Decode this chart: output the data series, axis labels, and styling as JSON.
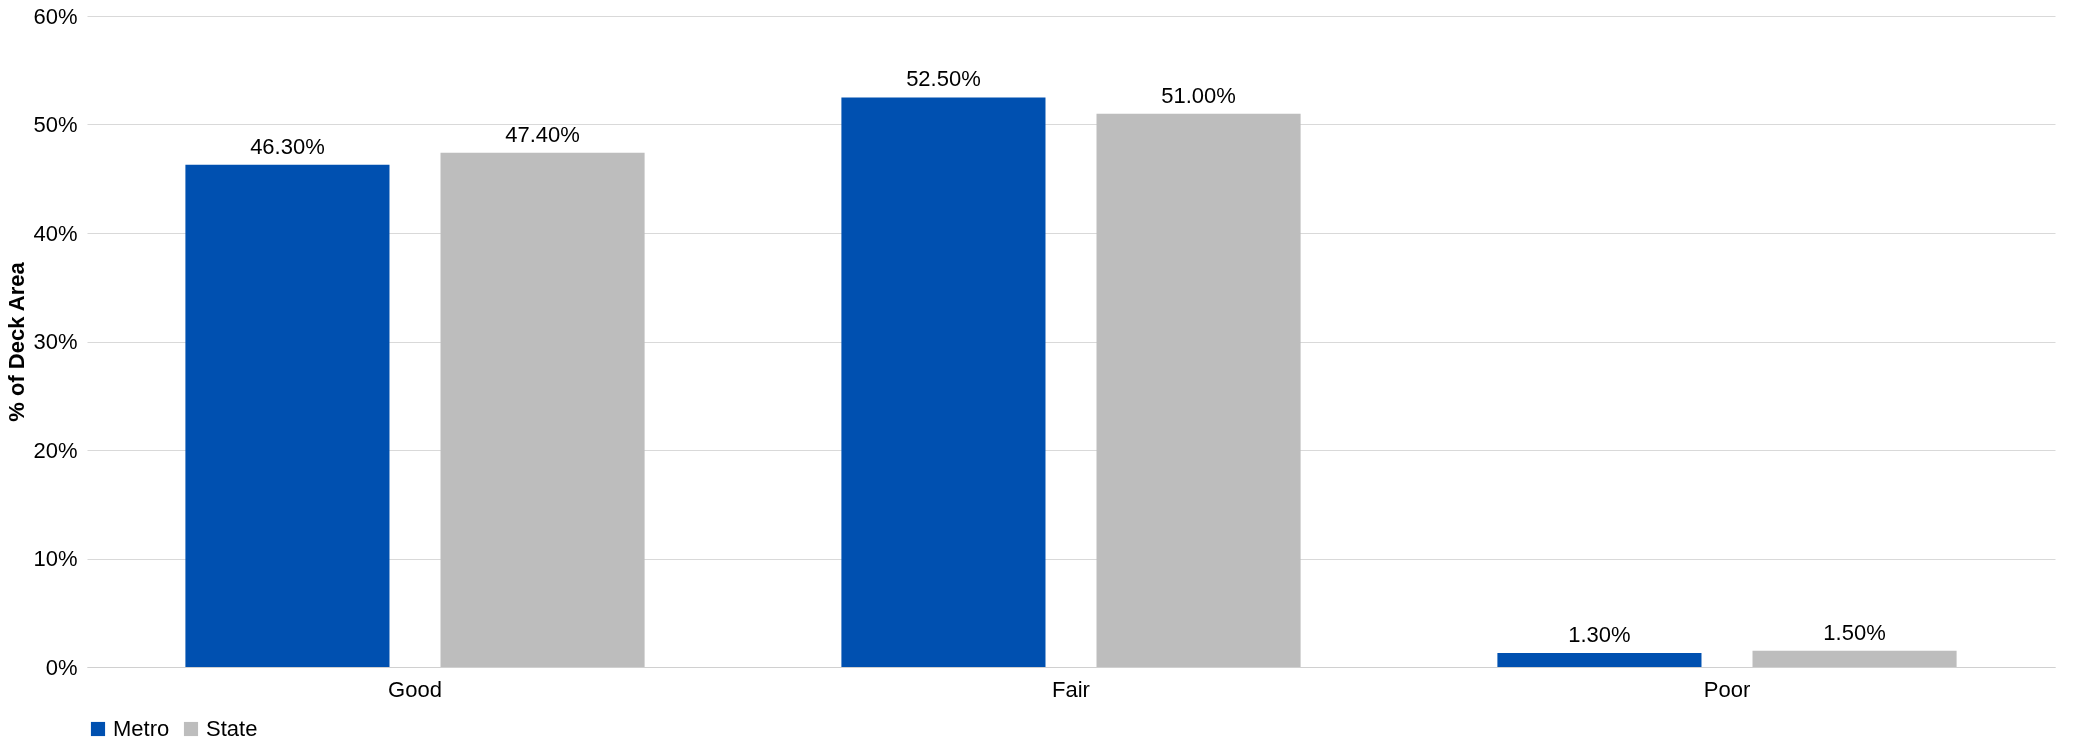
{
  "chart_data": {
    "type": "bar",
    "ylabel": "% of Deck Area",
    "categories": [
      "Good",
      "Fair",
      "Poor"
    ],
    "series": [
      {
        "name": "Metro",
        "color": "#0050b0",
        "values": [
          46.3,
          52.5,
          1.3
        ],
        "value_labels": [
          "46.30%",
          "52.50%",
          "1.30%"
        ]
      },
      {
        "name": "State",
        "color": "#bdbdbd",
        "values": [
          47.4,
          51.0,
          1.5
        ],
        "value_labels": [
          "47.40%",
          "51.00%",
          "1.50%"
        ]
      }
    ],
    "ylim": [
      0,
      60
    ],
    "yticks": [
      {
        "value": 0,
        "label": "0%"
      },
      {
        "value": 10,
        "label": "10%"
      },
      {
        "value": 20,
        "label": "20%"
      },
      {
        "value": 30,
        "label": "30%"
      },
      {
        "value": 40,
        "label": "40%"
      },
      {
        "value": 50,
        "label": "50%"
      },
      {
        "value": 60,
        "label": "60%"
      }
    ],
    "grid": "y",
    "legend": "bottom"
  }
}
